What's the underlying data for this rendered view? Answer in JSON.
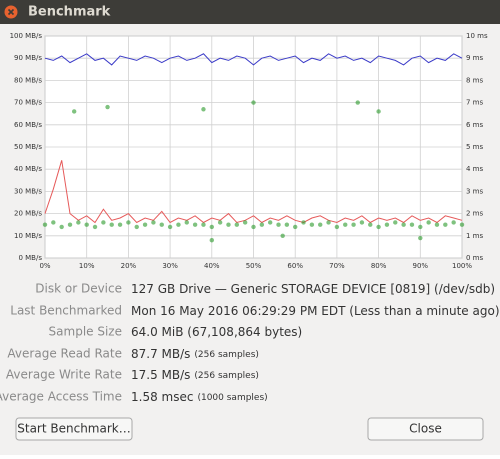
{
  "window": {
    "title": "Benchmark"
  },
  "chart_data": {
    "type": "line",
    "x": [
      0,
      2,
      4,
      6,
      8,
      10,
      12,
      14,
      16,
      18,
      20,
      22,
      24,
      26,
      28,
      30,
      32,
      34,
      36,
      38,
      40,
      42,
      44,
      46,
      48,
      50,
      52,
      54,
      56,
      58,
      60,
      62,
      64,
      66,
      68,
      70,
      72,
      74,
      76,
      78,
      80,
      82,
      84,
      86,
      88,
      90,
      92,
      94,
      96,
      98,
      100
    ],
    "xlim": [
      0,
      100
    ],
    "xticks": [
      {
        "value": 0,
        "label": "0%"
      },
      {
        "value": 10,
        "label": "10%"
      },
      {
        "value": 20,
        "label": "20%"
      },
      {
        "value": 30,
        "label": "30%"
      },
      {
        "value": 40,
        "label": "40%"
      },
      {
        "value": 50,
        "label": "50%"
      },
      {
        "value": 60,
        "label": "60%"
      },
      {
        "value": 70,
        "label": "70%"
      },
      {
        "value": 80,
        "label": "80%"
      },
      {
        "value": 90,
        "label": "90%"
      },
      {
        "value": 100,
        "label": "100%"
      }
    ],
    "ylim": [
      0,
      100
    ],
    "yticks": [
      {
        "value": 0,
        "label": "0 MB/s"
      },
      {
        "value": 10,
        "label": "10 MB/s"
      },
      {
        "value": 20,
        "label": "20 MB/s"
      },
      {
        "value": 30,
        "label": "30 MB/s"
      },
      {
        "value": 40,
        "label": "40 MB/s"
      },
      {
        "value": 50,
        "label": "50 MB/s"
      },
      {
        "value": 60,
        "label": "60 MB/s"
      },
      {
        "value": 70,
        "label": "70 MB/s"
      },
      {
        "value": 80,
        "label": "80 MB/s"
      },
      {
        "value": 90,
        "label": "90 MB/s"
      },
      {
        "value": 100,
        "label": "100 MB/s"
      }
    ],
    "y2lim": [
      0,
      10
    ],
    "y2ticks": [
      {
        "value": 0,
        "label": "0 ms"
      },
      {
        "value": 1,
        "label": "1 ms"
      },
      {
        "value": 2,
        "label": "2 ms"
      },
      {
        "value": 3,
        "label": "3 ms"
      },
      {
        "value": 4,
        "label": "4 ms"
      },
      {
        "value": 5,
        "label": "5 ms"
      },
      {
        "value": 6,
        "label": "6 ms"
      },
      {
        "value": 7,
        "label": "7 ms"
      },
      {
        "value": 8,
        "label": "8 ms"
      },
      {
        "value": 9,
        "label": "9 ms"
      },
      {
        "value": 10,
        "label": "10 ms"
      }
    ],
    "grid": true,
    "series": [
      {
        "color": "#3b3bc8",
        "values": [
          90,
          89,
          91,
          88,
          90,
          92,
          89,
          90,
          87,
          91,
          90,
          89,
          91,
          90,
          88,
          90,
          91,
          89,
          90,
          92,
          88,
          90,
          89,
          91,
          90,
          87,
          90,
          91,
          89,
          90,
          91,
          88,
          90,
          89,
          92,
          90,
          91,
          89,
          90,
          88,
          91,
          90,
          89,
          87,
          90,
          91,
          88,
          90,
          89,
          92,
          90
        ]
      },
      {
        "color": "#e65a5a",
        "values": [
          20,
          31,
          44,
          20,
          17,
          19,
          16,
          22,
          17,
          18,
          20,
          16,
          18,
          17,
          21,
          16,
          18,
          17,
          19,
          16,
          18,
          17,
          20,
          16,
          17,
          19,
          16,
          18,
          17,
          19,
          17,
          16,
          18,
          19,
          17,
          16,
          18,
          17,
          19,
          16,
          18,
          17,
          18,
          16,
          19,
          17,
          18,
          16,
          19,
          18,
          17
        ]
      },
      {
        "type": "scatter",
        "axis": "y2",
        "color": "#2a9a2a",
        "x": [
          0,
          2,
          4,
          6,
          8,
          10,
          12,
          14,
          16,
          18,
          20,
          22,
          24,
          26,
          28,
          30,
          32,
          34,
          36,
          38,
          40,
          42,
          44,
          46,
          48,
          50,
          52,
          54,
          56,
          58,
          60,
          62,
          64,
          66,
          68,
          70,
          72,
          74,
          76,
          78,
          80,
          82,
          84,
          86,
          88,
          90,
          92,
          94,
          96,
          98,
          100,
          7,
          15,
          38,
          40,
          50,
          57,
          75,
          80,
          90
        ],
        "values": [
          1.5,
          1.6,
          1.4,
          1.5,
          1.6,
          1.5,
          1.4,
          1.6,
          1.5,
          1.5,
          1.6,
          1.4,
          1.5,
          1.6,
          1.5,
          1.4,
          1.5,
          1.6,
          1.5,
          1.5,
          1.4,
          1.6,
          1.5,
          1.5,
          1.6,
          1.4,
          1.5,
          1.6,
          1.5,
          1.5,
          1.4,
          1.6,
          1.5,
          1.5,
          1.6,
          1.4,
          1.5,
          1.5,
          1.6,
          1.5,
          1.4,
          1.5,
          1.6,
          1.5,
          1.5,
          1.4,
          1.6,
          1.5,
          1.5,
          1.6,
          1.5,
          6.6,
          6.8,
          6.7,
          0.8,
          7.0,
          1.0,
          7.0,
          6.6,
          0.9
        ]
      }
    ]
  },
  "info": [
    {
      "label": "Disk or Device",
      "value": "127 GB Drive — Generic STORAGE DEVICE [0819] (/dev/sdb)"
    },
    {
      "label": "Last Benchmarked",
      "value": "Mon 16 May 2016 06:29:29 PM EDT (Less than a minute ago)"
    },
    {
      "label": "Sample Size",
      "value": "64.0 MiB (67,108,864 bytes)"
    },
    {
      "label": "Average Read Rate",
      "value": "87.7 MB/s",
      "note": "(256 samples)"
    },
    {
      "label": "Average Write Rate",
      "value": "17.5 MB/s",
      "note": "(256 samples)"
    },
    {
      "label": "Average Access Time",
      "value": "1.58 msec",
      "note": "(1000 samples)"
    }
  ],
  "buttons": {
    "start": "Start Benchmark…",
    "close": "Close"
  }
}
